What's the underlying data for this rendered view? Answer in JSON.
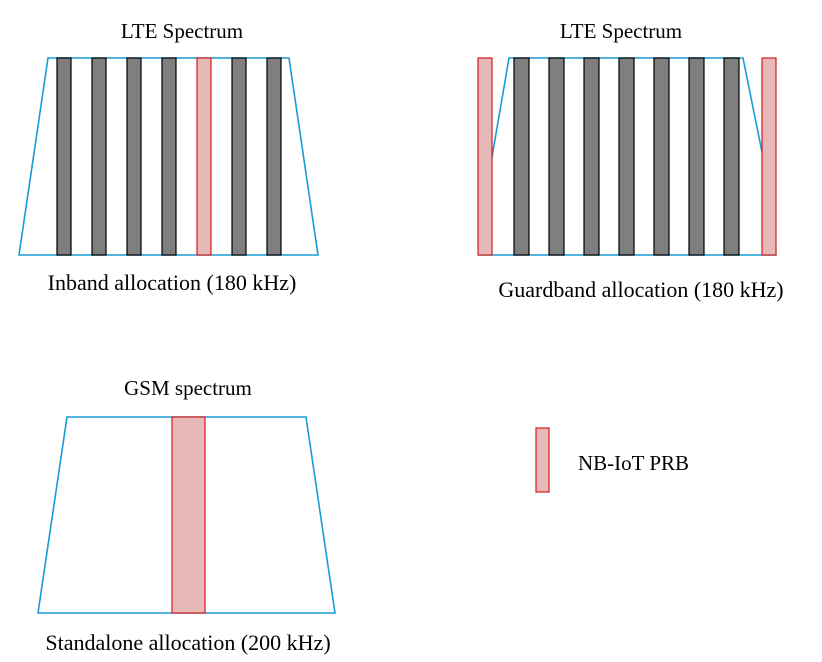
{
  "panels": {
    "inband": {
      "title": "LTE Spectrum",
      "caption": "Inband allocation (180 kHz)",
      "prb_sequence": [
        "lte",
        "lte",
        "lte",
        "lte",
        "nbiot",
        "lte",
        "lte"
      ]
    },
    "guardband": {
      "title": "LTE Spectrum",
      "caption": "Guardband allocation (180 kHz)",
      "prb_sequence": [
        "lte",
        "lte",
        "lte",
        "lte",
        "lte",
        "lte",
        "lte"
      ],
      "guard_prbs": [
        "nbiot",
        "nbiot"
      ]
    },
    "standalone": {
      "title": "GSM spectrum",
      "caption": "Standalone allocation (200 kHz)",
      "prb_sequence": [
        "nbiot"
      ]
    }
  },
  "legend": {
    "label": "NB-IoT PRB"
  },
  "colors": {
    "spectrum_outline": "#1a9bd7",
    "lte_prb_fill": "#7f7f7f",
    "lte_prb_stroke": "#000000",
    "nbiot_fill": "#e6b9b8",
    "nbiot_stroke": "#d61a1a"
  }
}
